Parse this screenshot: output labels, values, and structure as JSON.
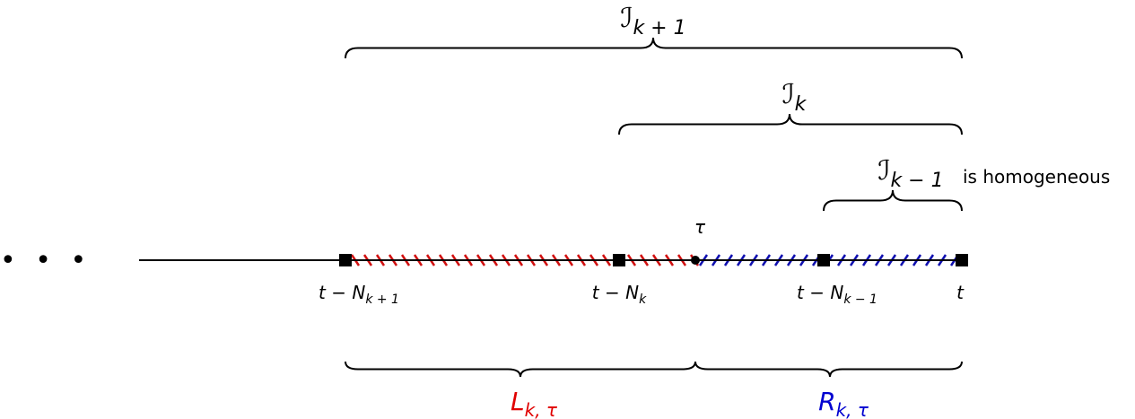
{
  "dots": "• • •",
  "intervals": [
    {
      "symbol": "ℐ",
      "sub": "k + 1"
    },
    {
      "symbol": "ℐ",
      "sub": "k"
    },
    {
      "symbol": "ℐ",
      "sub": "k − 1",
      "note": "is homogeneous"
    }
  ],
  "tau": "τ",
  "points": [
    {
      "main": "t − N",
      "sub": "k + 1"
    },
    {
      "main": "t − N",
      "sub": "k"
    },
    {
      "main": "t − N",
      "sub": "k − 1"
    },
    {
      "main": "t"
    }
  ],
  "segments": [
    {
      "symbol": "L",
      "sub": "k, τ"
    },
    {
      "symbol": "R",
      "sub": "k, τ"
    }
  ]
}
